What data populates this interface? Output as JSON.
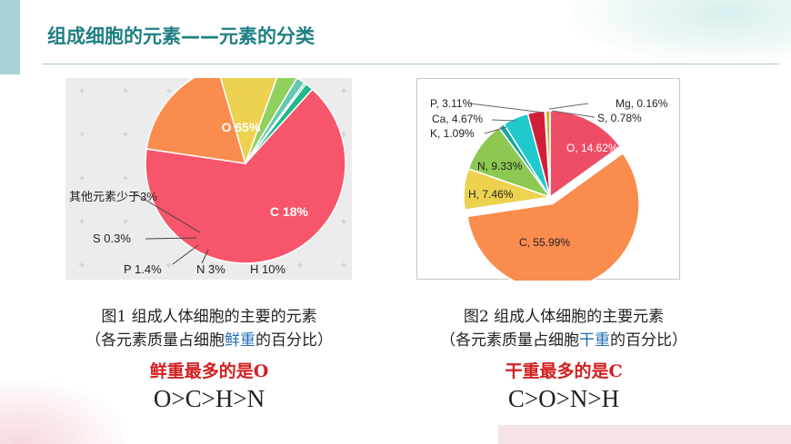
{
  "header": {
    "title": "组成细胞的元素——元素的分类"
  },
  "colors": {
    "title": "#1f7f83",
    "accent": "#a8d3d6",
    "highlight": "#1f6fb5",
    "emphasis": "#d42020"
  },
  "chart_data": [
    {
      "type": "pie",
      "slices": [
        {
          "label": "O 65%",
          "value": 65,
          "color": "#f7556b"
        },
        {
          "label": "C 18%",
          "value": 18,
          "color": "#fb8c4f"
        },
        {
          "label": "H 10%",
          "value": 10,
          "color": "#ecd250"
        },
        {
          "label": "N 3%",
          "value": 3,
          "color": "#8fd05f"
        },
        {
          "label": "P 1.4%",
          "value": 1.4,
          "color": "#67c7b1"
        },
        {
          "label": "S 0.3%",
          "value": 0.3,
          "color": "#2a9a74"
        },
        {
          "label": "其他元素少于3%",
          "value": 1.3,
          "color": "#1fb98b"
        }
      ],
      "grid": true
    },
    {
      "type": "pie",
      "slices": [
        {
          "label": "O, 14.62%",
          "value": 14.62,
          "color": "#ee4d66"
        },
        {
          "label": "C, 55.99%",
          "value": 55.99,
          "color": "#fa8c4e"
        },
        {
          "label": "H, 7.46%",
          "value": 7.46,
          "color": "#ecd24e"
        },
        {
          "label": "N, 9.33%",
          "value": 9.33,
          "color": "#8dc952"
        },
        {
          "label": "K, 1.09%",
          "value": 1.09,
          "color": "#16a6a2"
        },
        {
          "label": "Ca, 4.67%",
          "value": 4.67,
          "color": "#1fc9cc"
        },
        {
          "label": "P, 3.11%",
          "value": 3.11,
          "color": "#d11f3a"
        },
        {
          "label": "Mg, 0.16%",
          "value": 0.16,
          "color": "#1b7f3a"
        },
        {
          "label": "S, 0.78%",
          "value": 0.78,
          "color": "#c9b32a"
        }
      ]
    }
  ],
  "left": {
    "caption_line1": "图1  组成人体细胞的主要的元素",
    "caption_line2_pre": "（各元素质量占细胞",
    "caption_line2_hl": "鲜重",
    "caption_line2_post": "的百分比）",
    "conclusion": "鲜重最多的是O",
    "order": "O>C>H>N"
  },
  "right": {
    "caption_line1": "图2  组成人体细胞的主要元素",
    "caption_line2_pre": "（各元素质量占细胞",
    "caption_line2_hl": "干重",
    "caption_line2_post": "的百分比）",
    "conclusion": "干重最多的是C",
    "order": "C>O>N>H"
  }
}
